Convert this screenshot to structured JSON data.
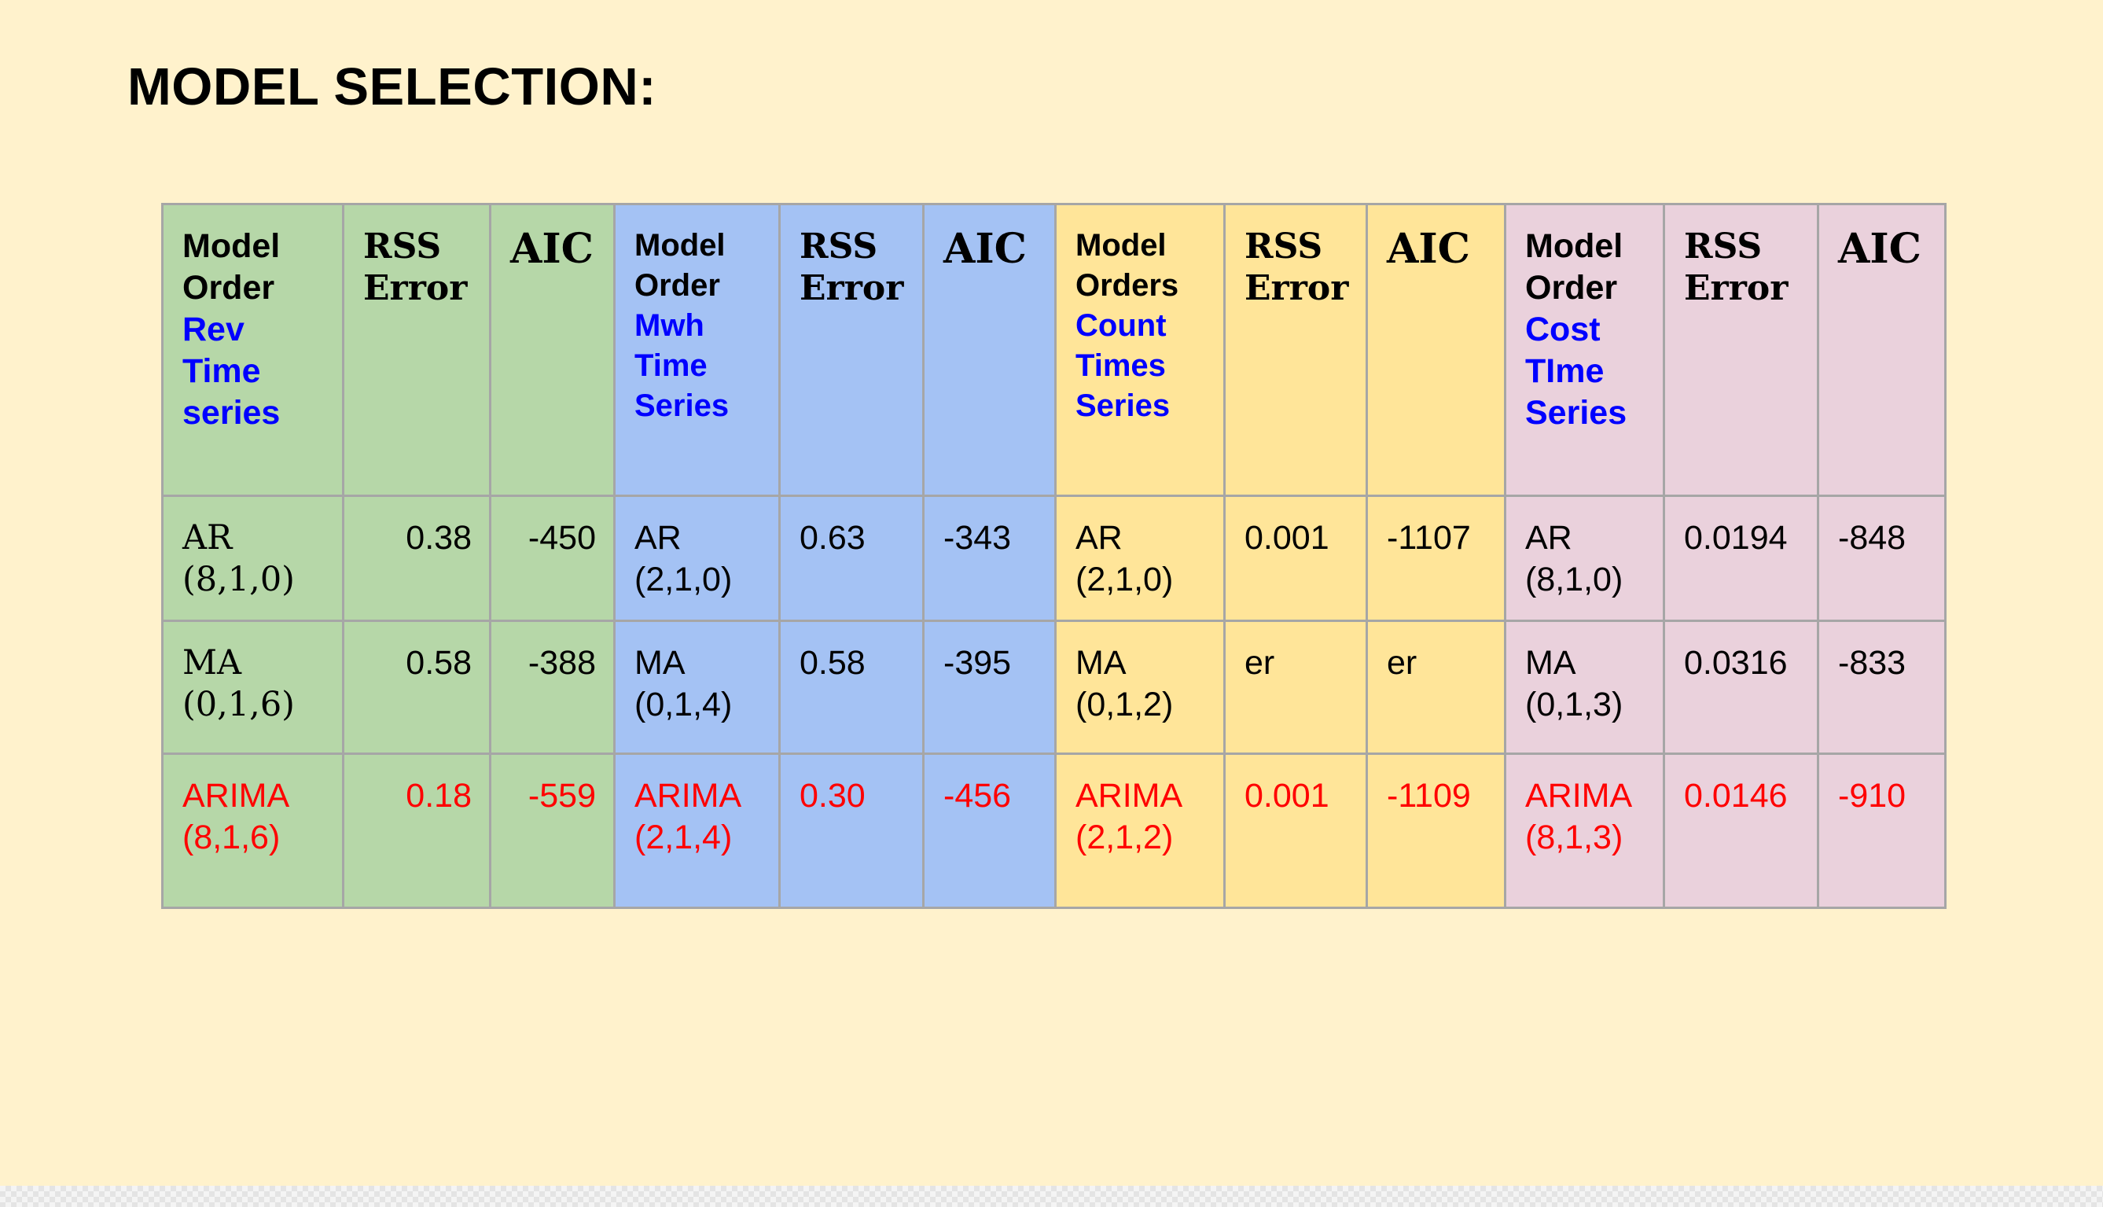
{
  "title": "MODEL SELECTION:",
  "colors": {
    "background": "#fff2cc",
    "rev_group": "#b6d7a8",
    "mwh_group": "#a4c2f4",
    "count_group": "#ffe599",
    "cost_group": "#ead1dc",
    "series_label": "#0000ff",
    "best_model": "#ff0000"
  },
  "table": {
    "groups": [
      {
        "model_header": [
          "Model",
          "Order"
        ],
        "series_header": [
          "Rev",
          "Time",
          "series"
        ],
        "rss_header": [
          "RSS",
          "Error"
        ],
        "aic_header": "AIC",
        "rows": [
          {
            "model": [
              "AR",
              "(8,1,0)"
            ],
            "rss": "0.38",
            "aic": "-450"
          },
          {
            "model": [
              "MA",
              "(0,1,6)"
            ],
            "rss": "0.58",
            "aic": "-388"
          },
          {
            "model": [
              "ARIMA",
              "(8,1,6)"
            ],
            "rss": "0.18",
            "aic": "-559"
          }
        ]
      },
      {
        "model_header": [
          "Model",
          "Order"
        ],
        "series_header": [
          "Mwh",
          "Time",
          "Series"
        ],
        "rss_header": [
          "RSS",
          "Error"
        ],
        "aic_header": "AIC",
        "rows": [
          {
            "model": [
              "AR",
              "(2,1,0)"
            ],
            "rss": "0.63",
            "aic": "-343"
          },
          {
            "model": [
              "MA",
              "(0,1,4)"
            ],
            "rss": "0.58",
            "aic": "-395"
          },
          {
            "model": [
              "ARIMA",
              "(2,1,4)"
            ],
            "rss": "0.30",
            "aic": "-456"
          }
        ]
      },
      {
        "model_header": [
          "Model",
          "Orders"
        ],
        "series_header": [
          "Count",
          "Times",
          "Series"
        ],
        "rss_header": [
          "RSS",
          "Error"
        ],
        "aic_header": "AIC",
        "rows": [
          {
            "model": [
              "AR",
              "(2,1,0)"
            ],
            "rss": "0.001",
            "aic": "-1107"
          },
          {
            "model": [
              "MA",
              "(0,1,2)"
            ],
            "rss": "er",
            "aic": "er"
          },
          {
            "model": [
              "ARIMA",
              "(2,1,2)"
            ],
            "rss": "0.001",
            "aic": "-1109"
          }
        ]
      },
      {
        "model_header": [
          "Model",
          "Order"
        ],
        "series_header": [
          "Cost",
          "TIme",
          "Series"
        ],
        "rss_header": [
          "RSS",
          "Error"
        ],
        "aic_header": "AIC",
        "rows": [
          {
            "model": [
              "AR",
              "(8,1,0)"
            ],
            "rss": "0.0194",
            "aic": "-848"
          },
          {
            "model": [
              "MA",
              "(0,1,3)"
            ],
            "rss": "0.0316",
            "aic": "-833"
          },
          {
            "model": [
              "ARIMA",
              "(8,1,3)"
            ],
            "rss": "0.0146",
            "aic": "-910"
          }
        ]
      }
    ]
  }
}
